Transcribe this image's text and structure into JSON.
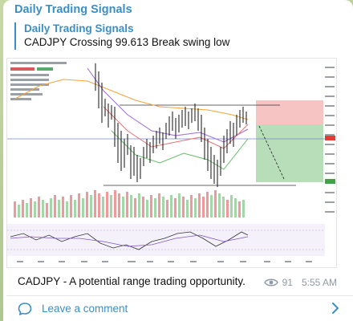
{
  "channel": {
    "name": "Daily Trading Signals"
  },
  "reply": {
    "title": "Daily Trading Signals",
    "text": "CADJPY Crossing 99.613 Break swing low"
  },
  "post": {
    "caption": "CADJPY - A potential range trading opportunity.",
    "views": "91",
    "time": "5:55 AM"
  },
  "comments": {
    "label": "Leave a comment"
  },
  "colors": {
    "accent": "#3a8fc4",
    "chart_up": "#4caf50",
    "chart_down": "#e53935"
  },
  "icons": {
    "views": "eye-icon",
    "comment": "comment-bubble-icon",
    "open": "chevron-right-icon"
  }
}
